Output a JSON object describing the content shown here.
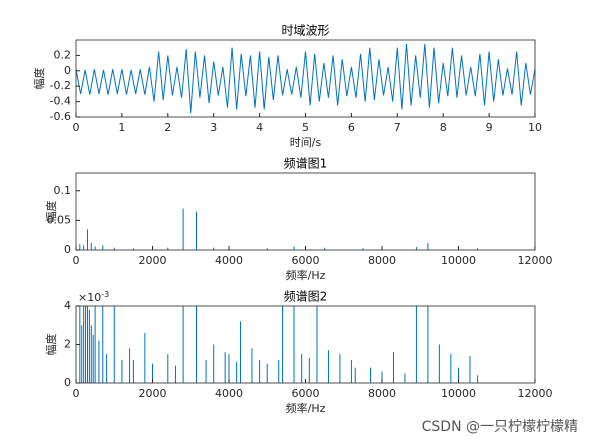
{
  "chart_data": [
    {
      "type": "line",
      "title": "时域波形",
      "xlabel": "时间/s",
      "ylabel": "幅度",
      "color": "#0072BD",
      "xlim": [
        0,
        10
      ],
      "xticks": [
        0,
        1,
        2,
        3,
        4,
        5,
        6,
        7,
        8,
        9,
        10
      ],
      "ylim": [
        -0.6,
        0.4
      ],
      "yticks": [
        -0.6,
        -0.4,
        -0.2,
        0,
        0.2
      ],
      "x": [
        0,
        0.1,
        0.2,
        0.3,
        0.4,
        0.5,
        0.6,
        0.7,
        0.8,
        0.9,
        1,
        1.1,
        1.2,
        1.3,
        1.4,
        1.5,
        1.6,
        1.7,
        1.8,
        1.9,
        2,
        2.1,
        2.2,
        2.3,
        2.4,
        2.5,
        2.6,
        2.7,
        2.8,
        2.9,
        3,
        3.1,
        3.2,
        3.3,
        3.4,
        3.5,
        3.6,
        3.7,
        3.8,
        3.9,
        4,
        4.1,
        4.2,
        4.3,
        4.4,
        4.5,
        4.6,
        4.7,
        4.8,
        4.9,
        5,
        5.1,
        5.2,
        5.3,
        5.4,
        5.5,
        5.6,
        5.7,
        5.8,
        5.9,
        6,
        6.1,
        6.2,
        6.3,
        6.4,
        6.5,
        6.6,
        6.7,
        6.8,
        6.9,
        7,
        7.1,
        7.2,
        7.3,
        7.4,
        7.5,
        7.6,
        7.7,
        7.8,
        7.9,
        8,
        8.1,
        8.2,
        8.3,
        8.4,
        8.5,
        8.6,
        8.7,
        8.8,
        8.9,
        9,
        9.1,
        9.2,
        9.3,
        9.4,
        9.5,
        9.6,
        9.7,
        9.8,
        9.9,
        10
      ],
      "values": [
        0.02,
        -0.3,
        0.01,
        -0.31,
        0.02,
        -0.3,
        0.01,
        -0.31,
        0.02,
        -0.3,
        0.02,
        -0.31,
        0.01,
        -0.3,
        0.02,
        -0.31,
        0.05,
        -0.4,
        0.25,
        -0.38,
        0.2,
        -0.32,
        0.05,
        -0.35,
        0.28,
        -0.55,
        0.25,
        -0.35,
        0.2,
        -0.42,
        0.12,
        -0.32,
        0.05,
        -0.48,
        0.3,
        -0.5,
        0.22,
        -0.33,
        0.2,
        -0.48,
        0.25,
        -0.5,
        0.18,
        -0.38,
        0.2,
        -0.32,
        0.02,
        -0.31,
        0.05,
        -0.35,
        0.25,
        -0.45,
        0.22,
        -0.4,
        0.1,
        -0.35,
        0.2,
        -0.45,
        0.15,
        -0.33,
        0.05,
        -0.35,
        0.22,
        -0.4,
        0.3,
        -0.38,
        0.15,
        -0.32,
        0.05,
        -0.4,
        0.3,
        -0.5,
        0.35,
        -0.45,
        0.2,
        -0.35,
        0.35,
        -0.48,
        0.3,
        -0.42,
        0.1,
        -0.33,
        0.3,
        -0.35,
        0.2,
        -0.32,
        0.05,
        -0.33,
        0.22,
        -0.45,
        0.25,
        -0.4,
        0.15,
        -0.32,
        0.03,
        -0.31,
        0.25,
        -0.45,
        0.1,
        -0.31,
        0.02
      ]
    },
    {
      "type": "stem",
      "title": "频谱图1",
      "xlabel": "频率/Hz",
      "ylabel": "幅度",
      "color": "#0072BD",
      "xlim": [
        0,
        12000
      ],
      "xticks": [
        0,
        2000,
        4000,
        6000,
        8000,
        10000,
        12000
      ],
      "ylim": [
        0,
        0.13
      ],
      "yticks": [
        0,
        0.05,
        0.1
      ],
      "x": [
        100,
        200,
        300,
        400,
        500,
        700,
        1000,
        1500,
        2000,
        2400,
        2800,
        3150,
        3600,
        4000,
        5000,
        5700,
        6500,
        7500,
        8900,
        9200,
        10000,
        10500
      ],
      "values": [
        0.01,
        0.008,
        0.035,
        0.012,
        0.006,
        0.008,
        0.004,
        0.003,
        0.003,
        0.004,
        0.07,
        0.065,
        0.004,
        0.003,
        0.003,
        0.006,
        0.004,
        0.003,
        0.005,
        0.012,
        0.003,
        0.003
      ]
    },
    {
      "type": "stem",
      "title": "频谱图2",
      "xlabel": "频率/Hz",
      "ylabel": "幅度",
      "color": "#0072BD",
      "exponent_base": "×10",
      "exponent": "-3",
      "xlim": [
        0,
        12000
      ],
      "xticks": [
        0,
        2000,
        4000,
        6000,
        8000,
        10000,
        12000
      ],
      "ylim": [
        0,
        0.004
      ],
      "yticks": [
        0,
        {
          "value": 0.002,
          "label": "2"
        },
        {
          "value": 0.004,
          "label": "4"
        }
      ],
      "x": [
        100,
        150,
        200,
        250,
        300,
        350,
        400,
        450,
        500,
        600,
        700,
        800,
        1000,
        1200,
        1400,
        1500,
        1800,
        2000,
        2400,
        2600,
        2800,
        3150,
        3400,
        3600,
        3900,
        4000,
        4200,
        4300,
        4600,
        4800,
        5000,
        5300,
        5400,
        5700,
        5900,
        6100,
        6300,
        6600,
        6900,
        7200,
        7300,
        7700,
        8000,
        8300,
        8600,
        8900,
        9200,
        9500,
        9800,
        10000,
        10300,
        10500
      ],
      "values": [
        0.004,
        0.003,
        0.004,
        0.004,
        0.004,
        0.0038,
        0.003,
        0.0025,
        0.004,
        0.0022,
        0.004,
        0.0015,
        0.004,
        0.0012,
        0.0018,
        0.0012,
        0.0026,
        0.001,
        0.0015,
        0.0009,
        0.004,
        0.004,
        0.0012,
        0.002,
        0.0016,
        0.0015,
        0.0011,
        0.0032,
        0.0018,
        0.0012,
        0.001,
        0.0012,
        0.004,
        0.004,
        0.0015,
        0.0013,
        0.004,
        0.0017,
        0.0015,
        0.0012,
        0.0008,
        0.0008,
        0.0006,
        0.0016,
        0.0005,
        0.004,
        0.004,
        0.002,
        0.0015,
        0.0008,
        0.0014,
        0.0004
      ]
    }
  ],
  "watermark": "CSDN @一只柠檬柠檬精"
}
